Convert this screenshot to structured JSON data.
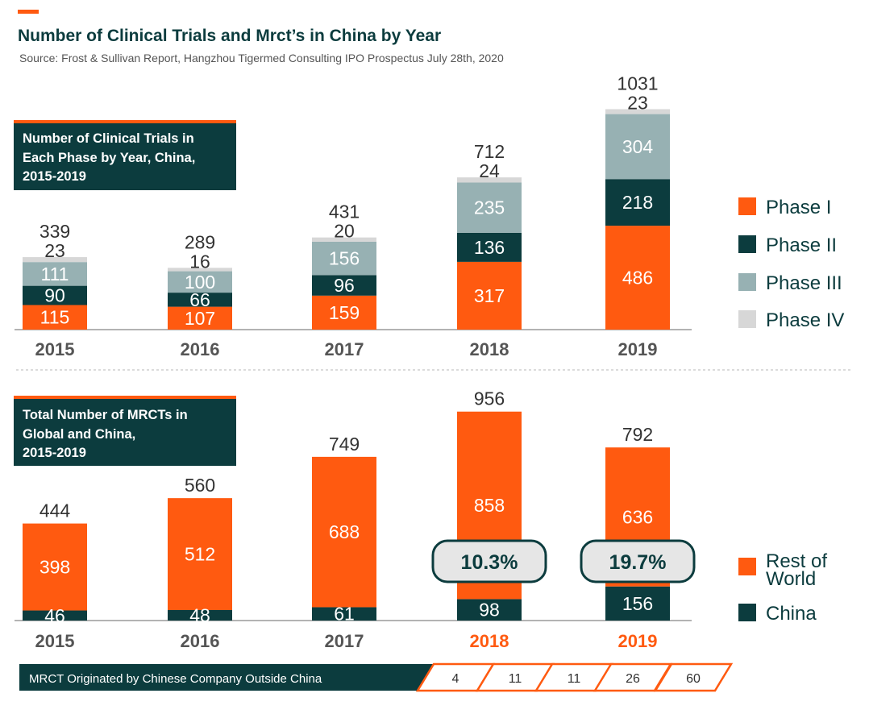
{
  "header": {
    "title": "Number of Clinical Trials and Mrct’s in China by Year",
    "source": "Source: Frost & Sullivan Report, Hangzhou Tigermed Consulting IPO Prospectus July 28th, 2020"
  },
  "colors": {
    "orange": "#FF5A10",
    "dark": "#0C3C3E",
    "phase3": "#97B1B3",
    "phase4": "#D7D7D7",
    "text": "#333333",
    "axis": "#9A9A9A"
  },
  "chart_data": [
    {
      "type": "bar",
      "stacked": true,
      "title": "Number of Clinical Trials in Each Phase by Year, China, 2015-2019",
      "title_lines": [
        "Number of Clinical Trials in",
        "Each Phase by Year, China,",
        "2015-2019"
      ],
      "categories": [
        "2015",
        "2016",
        "2017",
        "2018",
        "2019"
      ],
      "series": [
        {
          "name": "Phase I",
          "values": [
            115,
            107,
            159,
            317,
            486
          ]
        },
        {
          "name": "Phase II",
          "values": [
            90,
            66,
            96,
            136,
            218
          ]
        },
        {
          "name": "Phase III",
          "values": [
            111,
            100,
            156,
            235,
            304
          ]
        },
        {
          "name": "Phase IV",
          "values": [
            23,
            16,
            20,
            24,
            23
          ]
        }
      ],
      "totals": [
        339,
        289,
        431,
        712,
        1031
      ],
      "legend_position": "right",
      "grid": false
    },
    {
      "type": "bar",
      "stacked": true,
      "title": "Total Number of MRCTs in Global and China, 2015-2019",
      "title_lines": [
        "Total Number of MRCTs in",
        "Global and China,",
        "2015-2019"
      ],
      "categories": [
        "2015",
        "2016",
        "2017",
        "2018",
        "2019"
      ],
      "highlighted_categories": [
        "2018",
        "2019"
      ],
      "series": [
        {
          "name": "China",
          "values": [
            46,
            48,
            61,
            98,
            156
          ]
        },
        {
          "name": "Rest of World",
          "values": [
            398,
            512,
            688,
            858,
            636
          ]
        }
      ],
      "totals": [
        444,
        560,
        749,
        956,
        792
      ],
      "annotations": [
        {
          "category": "2018",
          "text": "10.3%"
        },
        {
          "category": "2019",
          "text": "19.7%"
        }
      ],
      "legend": [
        "Rest of World",
        "China"
      ],
      "legend_position": "right",
      "grid": false,
      "footer": {
        "label": "MRCT Originated by Chinese Company Outside China",
        "values": [
          4,
          11,
          11,
          26,
          60
        ]
      }
    }
  ]
}
